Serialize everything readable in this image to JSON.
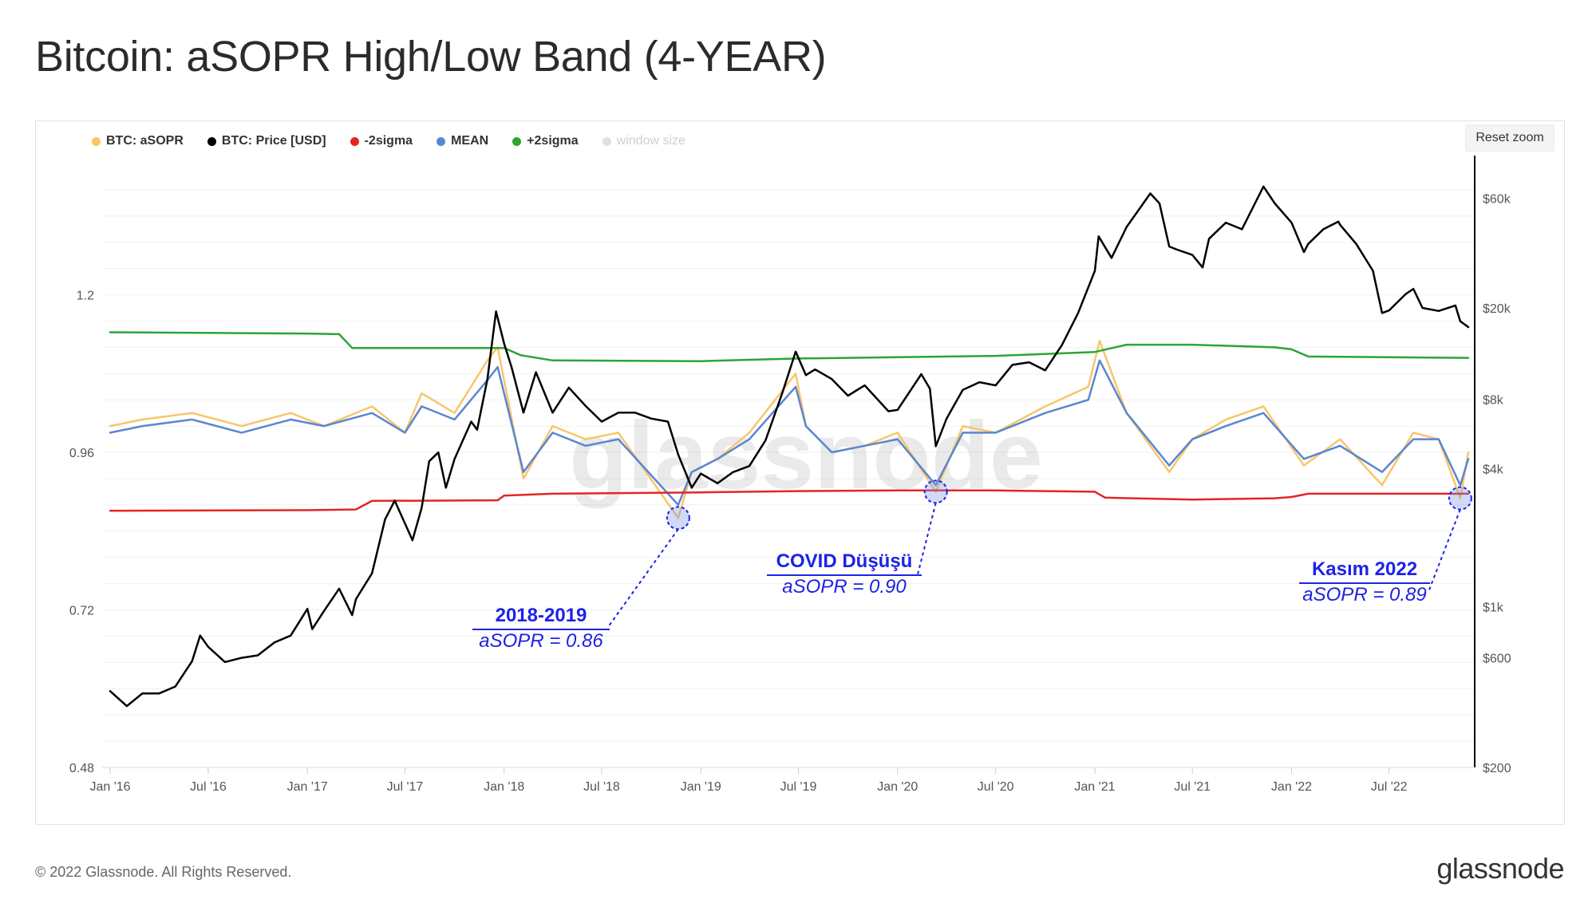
{
  "page": {
    "title": "Bitcoin: aSOPR High/Low Band (4-YEAR)",
    "footer_copyright": "© 2022 Glassnode. All Rights Reserved.",
    "footer_brand": "glassnode",
    "reset_zoom_label": "Reset zoom",
    "watermark": "glassnode"
  },
  "legend": [
    {
      "label": "BTC: aSOPR",
      "color": "#f8c66b"
    },
    {
      "label": "BTC: Price [USD]",
      "color": "#000000"
    },
    {
      "label": "-2sigma",
      "color": "#e42525"
    },
    {
      "label": "MEAN",
      "color": "#5a86d1"
    },
    {
      "label": "+2sigma",
      "color": "#2aa632"
    },
    {
      "label": "window size",
      "color": "#e0e0e0"
    }
  ],
  "annotations": [
    {
      "label": "2018-2019",
      "value": "aSOPR = 0.86"
    },
    {
      "label": "COVID Düşüşü",
      "value": "aSOPR = 0.90"
    },
    {
      "label": "Kasım 2022",
      "value": "aSOPR = 0.89"
    }
  ],
  "chart_data": {
    "type": "line",
    "x_ticks": [
      "Jan '16",
      "Jul '16",
      "Jan '17",
      "Jul '17",
      "Jan '18",
      "Jul '18",
      "Jan '19",
      "Jul '19",
      "Jan '20",
      "Jul '20",
      "Jan '21",
      "Jul '21",
      "Jan '22",
      "Jul '22"
    ],
    "x_range": [
      "2016-01-01",
      "2022-11-25"
    ],
    "y_left": {
      "scale": "linear",
      "range": [
        0.48,
        1.4
      ],
      "ticks": [
        0.48,
        0.72,
        0.96,
        1.2
      ],
      "tick_labels": [
        "0.48",
        "0.72",
        "0.96",
        "1.2"
      ]
    },
    "y_right": {
      "scale": "log",
      "range": [
        200,
        85000
      ],
      "ticks": [
        200,
        600,
        1000,
        4000,
        8000,
        20000,
        60000
      ],
      "tick_labels": [
        "$200",
        "$600",
        "$1k",
        "$4k",
        "$8k",
        "$20k",
        "$60k"
      ]
    },
    "grid": true,
    "legend_position": "top-left",
    "series": [
      {
        "name": "BTC: Price [USD]",
        "axis": "right",
        "color": "#000000",
        "x": [
          "2016-01-01",
          "2016-02-01",
          "2016-03-01",
          "2016-04-01",
          "2016-05-01",
          "2016-06-01",
          "2016-06-16",
          "2016-07-01",
          "2016-08-01",
          "2016-09-01",
          "2016-10-01",
          "2016-11-01",
          "2016-12-01",
          "2017-01-01",
          "2017-01-10",
          "2017-02-01",
          "2017-03-01",
          "2017-03-25",
          "2017-04-01",
          "2017-05-01",
          "2017-05-25",
          "2017-06-12",
          "2017-07-15",
          "2017-08-01",
          "2017-08-15",
          "2017-09-01",
          "2017-09-15",
          "2017-10-01",
          "2017-11-01",
          "2017-11-12",
          "2017-12-01",
          "2017-12-17",
          "2018-01-01",
          "2018-01-15",
          "2018-02-06",
          "2018-03-01",
          "2018-04-01",
          "2018-05-01",
          "2018-06-01",
          "2018-07-01",
          "2018-08-01",
          "2018-09-01",
          "2018-10-01",
          "2018-11-01",
          "2018-11-20",
          "2018-12-15",
          "2019-01-01",
          "2019-02-01",
          "2019-03-01",
          "2019-04-01",
          "2019-05-01",
          "2019-06-01",
          "2019-06-26",
          "2019-07-15",
          "2019-08-01",
          "2019-09-01",
          "2019-10-01",
          "2019-11-01",
          "2019-12-15",
          "2020-01-01",
          "2020-02-14",
          "2020-03-01",
          "2020-03-12",
          "2020-04-01",
          "2020-05-01",
          "2020-06-01",
          "2020-07-01",
          "2020-08-01",
          "2020-09-01",
          "2020-10-01",
          "2020-11-01",
          "2020-12-01",
          "2021-01-01",
          "2021-01-08",
          "2021-02-01",
          "2021-03-01",
          "2021-04-14",
          "2021-05-01",
          "2021-05-19",
          "2021-06-01",
          "2021-07-01",
          "2021-07-20",
          "2021-08-01",
          "2021-09-01",
          "2021-10-01",
          "2021-11-10",
          "2021-12-01",
          "2022-01-01",
          "2022-01-24",
          "2022-02-01",
          "2022-03-01",
          "2022-03-29",
          "2022-04-01",
          "2022-05-01",
          "2022-06-01",
          "2022-06-18",
          "2022-07-01",
          "2022-08-01",
          "2022-08-15",
          "2022-09-01",
          "2022-10-01",
          "2022-11-01",
          "2022-11-10",
          "2022-11-25"
        ],
        "y": [
          430,
          370,
          420,
          420,
          450,
          580,
          750,
          670,
          575,
          600,
          615,
          700,
          750,
          980,
          800,
          960,
          1200,
          920,
          1080,
          1400,
          2400,
          2900,
          1950,
          2700,
          4300,
          4700,
          3300,
          4400,
          6400,
          5900,
          9800,
          19300,
          14000,
          11000,
          7000,
          10500,
          7000,
          9000,
          7500,
          6400,
          7000,
          7000,
          6600,
          6400,
          4600,
          3300,
          3800,
          3450,
          3850,
          4100,
          5300,
          8500,
          12900,
          10200,
          10800,
          9800,
          8300,
          9200,
          7100,
          7200,
          10300,
          8900,
          5000,
          6600,
          8800,
          9500,
          9200,
          11300,
          11600,
          10700,
          13800,
          19000,
          29000,
          41000,
          33000,
          45000,
          63000,
          57000,
          37000,
          36000,
          34000,
          30000,
          40000,
          47000,
          44000,
          67500,
          57000,
          47000,
          35000,
          38000,
          44000,
          47500,
          46000,
          38000,
          29000,
          19000,
          19500,
          23000,
          24200,
          20000,
          19400,
          20500,
          17500,
          16500
        ]
      },
      {
        "name": "BTC: aSOPR",
        "axis": "left",
        "color": "#f8c66b",
        "x": [
          "2016-01-01",
          "2016-03-01",
          "2016-06-01",
          "2016-09-01",
          "2016-12-01",
          "2017-02-01",
          "2017-05-01",
          "2017-07-01",
          "2017-08-01",
          "2017-10-01",
          "2017-12-01",
          "2017-12-20",
          "2018-02-06",
          "2018-04-01",
          "2018-06-01",
          "2018-08-01",
          "2018-11-20",
          "2018-12-15",
          "2019-02-01",
          "2019-04-01",
          "2019-06-26",
          "2019-07-15",
          "2019-09-01",
          "2019-11-01",
          "2020-01-01",
          "2020-03-12",
          "2020-05-01",
          "2020-07-01",
          "2020-10-01",
          "2020-12-20",
          "2021-01-10",
          "2021-03-01",
          "2021-05-19",
          "2021-07-01",
          "2021-09-01",
          "2021-11-10",
          "2022-01-24",
          "2022-04-01",
          "2022-06-18",
          "2022-08-15",
          "2022-10-01",
          "2022-11-10",
          "2022-11-25"
        ],
        "y": [
          1.0,
          1.01,
          1.02,
          1.0,
          1.02,
          1.0,
          1.03,
          0.99,
          1.05,
          1.02,
          1.1,
          1.12,
          0.92,
          1.0,
          0.98,
          0.99,
          0.86,
          0.93,
          0.95,
          0.99,
          1.08,
          1.0,
          0.96,
          0.97,
          0.99,
          0.9,
          1.0,
          0.99,
          1.03,
          1.06,
          1.13,
          1.02,
          0.93,
          0.98,
          1.01,
          1.03,
          0.94,
          0.98,
          0.91,
          0.99,
          0.98,
          0.89,
          0.96
        ]
      },
      {
        "name": "MEAN",
        "axis": "left",
        "color": "#5a86d1",
        "x": [
          "2016-01-01",
          "2016-03-01",
          "2016-06-01",
          "2016-09-01",
          "2016-12-01",
          "2017-02-01",
          "2017-05-01",
          "2017-07-01",
          "2017-08-01",
          "2017-10-01",
          "2017-12-01",
          "2017-12-20",
          "2018-02-06",
          "2018-04-01",
          "2018-06-01",
          "2018-08-01",
          "2018-11-20",
          "2018-12-15",
          "2019-02-01",
          "2019-04-01",
          "2019-06-26",
          "2019-07-15",
          "2019-09-01",
          "2019-11-01",
          "2020-01-01",
          "2020-03-12",
          "2020-05-01",
          "2020-07-01",
          "2020-10-01",
          "2020-12-20",
          "2021-01-10",
          "2021-03-01",
          "2021-05-19",
          "2021-07-01",
          "2021-09-01",
          "2021-11-10",
          "2022-01-24",
          "2022-04-01",
          "2022-06-18",
          "2022-08-15",
          "2022-10-01",
          "2022-11-10",
          "2022-11-25"
        ],
        "y": [
          0.99,
          1.0,
          1.01,
          0.99,
          1.01,
          1.0,
          1.02,
          0.99,
          1.03,
          1.01,
          1.07,
          1.09,
          0.93,
          0.99,
          0.97,
          0.98,
          0.88,
          0.93,
          0.95,
          0.98,
          1.06,
          1.0,
          0.96,
          0.97,
          0.98,
          0.91,
          0.99,
          0.99,
          1.02,
          1.04,
          1.1,
          1.02,
          0.94,
          0.98,
          1.0,
          1.02,
          0.95,
          0.97,
          0.93,
          0.98,
          0.98,
          0.91,
          0.95
        ]
      },
      {
        "name": "+2sigma",
        "axis": "left",
        "color": "#2aa632",
        "x": [
          "2016-01-01",
          "2017-01-01",
          "2017-03-01",
          "2017-03-25",
          "2018-01-01",
          "2018-02-01",
          "2018-04-01",
          "2019-01-01",
          "2019-04-01",
          "2019-07-01",
          "2020-01-01",
          "2020-07-01",
          "2021-01-01",
          "2021-03-01",
          "2021-07-01",
          "2021-12-01",
          "2022-01-01",
          "2022-02-01",
          "2022-11-25"
        ],
        "y": [
          1.143,
          1.141,
          1.14,
          1.119,
          1.119,
          1.108,
          1.1,
          1.099,
          1.101,
          1.103,
          1.105,
          1.107,
          1.113,
          1.124,
          1.124,
          1.12,
          1.117,
          1.106,
          1.104
        ]
      },
      {
        "name": "-2sigma",
        "axis": "left",
        "color": "#e42525",
        "x": [
          "2016-01-01",
          "2017-01-01",
          "2017-04-01",
          "2017-05-01",
          "2017-12-20",
          "2018-01-01",
          "2018-04-01",
          "2019-01-01",
          "2019-07-01",
          "2020-01-01",
          "2020-07-01",
          "2021-01-01",
          "2021-01-20",
          "2021-07-01",
          "2021-12-01",
          "2022-01-01",
          "2022-02-01",
          "2022-11-25"
        ],
        "y": [
          0.871,
          0.872,
          0.873,
          0.886,
          0.887,
          0.894,
          0.897,
          0.899,
          0.901,
          0.902,
          0.902,
          0.9,
          0.891,
          0.888,
          0.89,
          0.892,
          0.897,
          0.897
        ]
      }
    ]
  }
}
